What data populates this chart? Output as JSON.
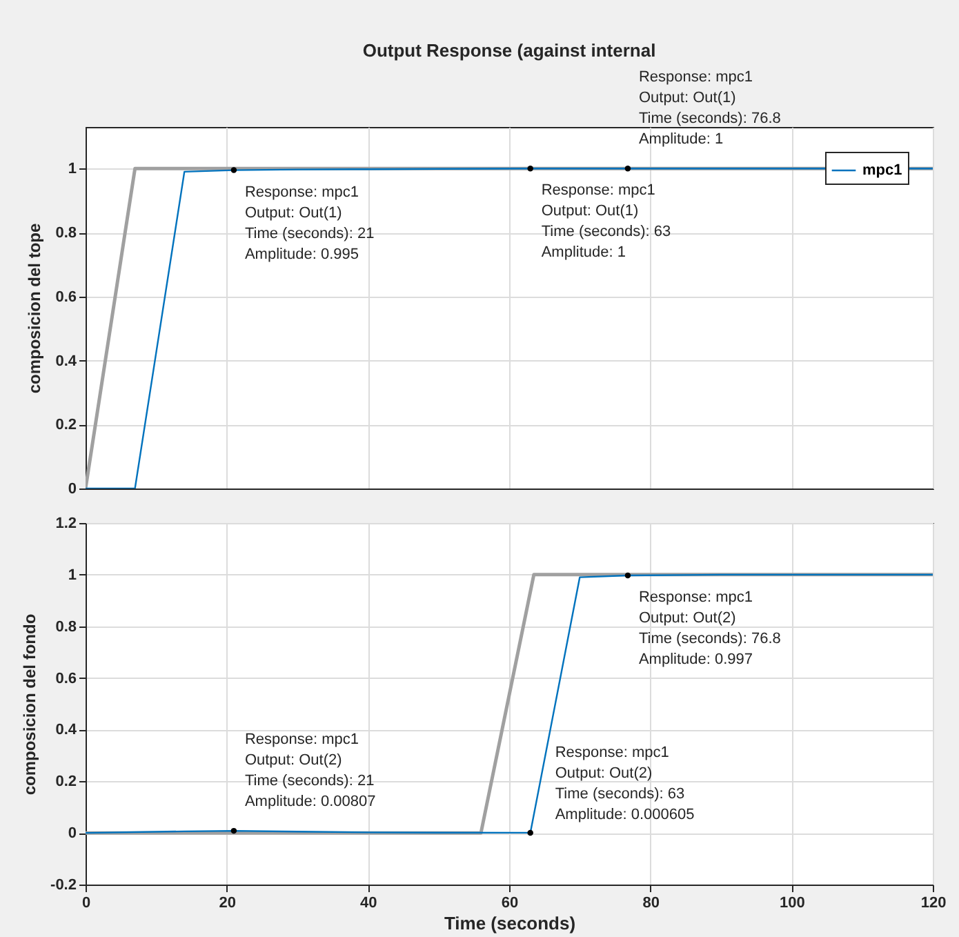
{
  "chart_data": [
    {
      "type": "line",
      "title": "Output Response (against internal",
      "ylabel": "composicion del tope",
      "xlim": [
        0,
        120
      ],
      "xticks": [
        0,
        20,
        40,
        60,
        80,
        100,
        120
      ],
      "ylim": [
        0,
        1.13
      ],
      "yticks": [
        0,
        0.2,
        0.4,
        0.6,
        0.8,
        1
      ],
      "grid": true,
      "legend": "top right",
      "tick_labels": "y",
      "series": [
        {
          "color": "#a0a0a0",
          "x": [
            0,
            7,
            120
          ],
          "values": [
            0,
            1,
            1
          ]
        },
        {
          "name": "mpc1",
          "color": "#0072bd",
          "x": [
            0,
            7,
            14,
            21,
            30,
            40,
            50,
            63,
            76.8,
            90,
            100,
            120
          ],
          "values": [
            0,
            0,
            0.99,
            0.995,
            0.997,
            0.998,
            0.999,
            1,
            1,
            1,
            1,
            1
          ]
        }
      ],
      "annotations": [
        {
          "text": "Response: mpc1\nOutput: Out(1)\nTime (seconds): 21\nAmplitude: 0.995",
          "x": 21,
          "y": 0.995
        },
        {
          "text": "Response: mpc1\nOutput: Out(1)\nTime (seconds): 63\nAmplitude: 1",
          "x": 63,
          "y": 1
        },
        {
          "text": "Response: mpc1\nOutput: Out(1)\nTime (seconds): 76.8\nAmplitude: 1",
          "x": 76.8,
          "y": 1
        }
      ]
    },
    {
      "type": "line",
      "xlabel": "Time (seconds)",
      "ylabel": "composicion del fondo",
      "xlim": [
        0,
        120
      ],
      "xticks": [
        0,
        20,
        40,
        60,
        80,
        100,
        120
      ],
      "ylim": [
        -0.2,
        1.2
      ],
      "yticks": [
        -0.2,
        0,
        0.2,
        0.4,
        0.6,
        0.8,
        1,
        1.2
      ],
      "grid": true,
      "series": [
        {
          "color": "#a0a0a0",
          "x": [
            0,
            56,
            63.5,
            120
          ],
          "values": [
            0,
            0,
            1,
            1
          ]
        },
        {
          "color": "#0072bd",
          "x": [
            0,
            14,
            21,
            30,
            40,
            50,
            63,
            70,
            76.8,
            90,
            120
          ],
          "values": [
            0,
            0.006,
            0.00807,
            0.005,
            0.002,
            0.001,
            0.000605,
            0.99,
            0.997,
            1,
            1
          ]
        }
      ],
      "annotations": [
        {
          "text": "Response: mpc1\nOutput: Out(2)\nTime (seconds): 21\nAmplitude: 0.00807",
          "x": 21,
          "y": 0.00807
        },
        {
          "text": "Response: mpc1\nOutput: Out(2)\nTime (seconds): 63\nAmplitude: 0.000605",
          "x": 63,
          "y": 0.000605
        },
        {
          "text": "Response: mpc1\nOutput: Out(2)\nTime (seconds): 76.8\nAmplitude: 0.997",
          "x": 76.8,
          "y": 0.997
        }
      ]
    }
  ]
}
